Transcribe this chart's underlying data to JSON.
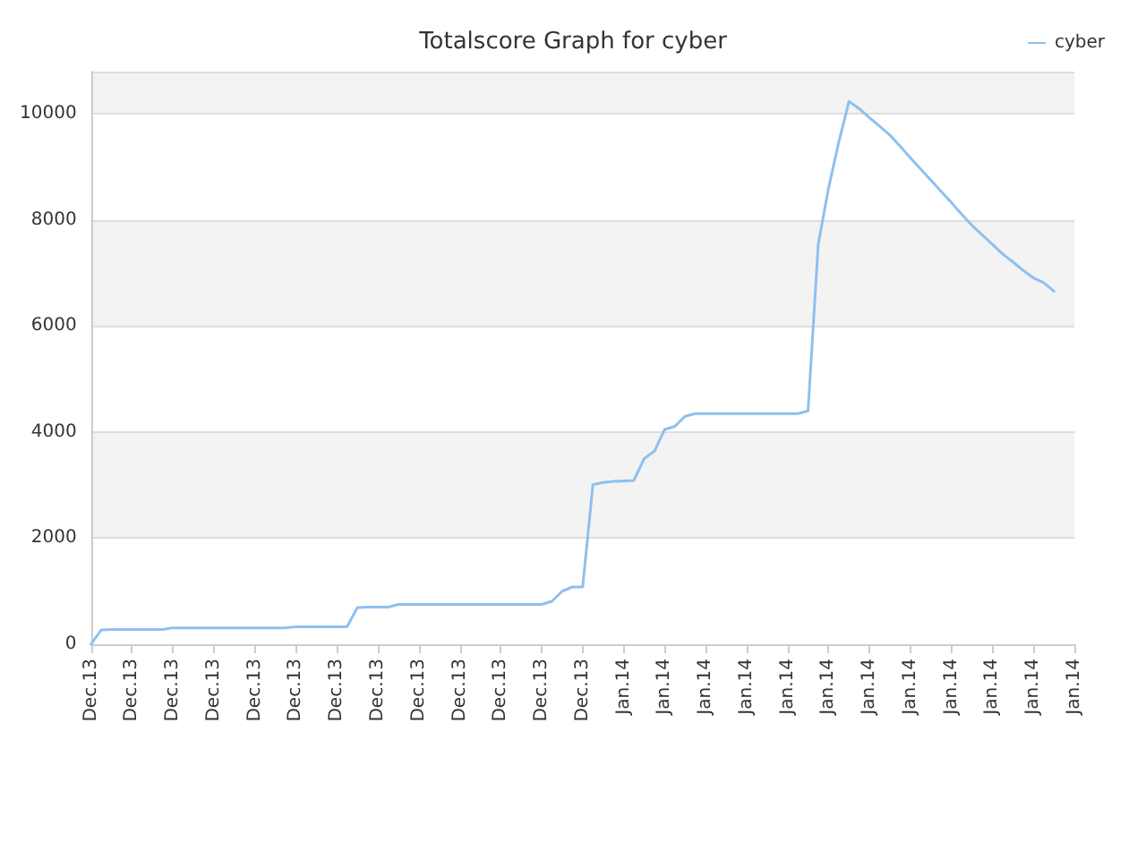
{
  "chart_data": {
    "type": "line",
    "title": "Totalscore Graph for cyber",
    "legend": "top right",
    "grid": "y",
    "marker": "none",
    "line_style": "solid",
    "ylim": [
      0,
      10800
    ],
    "yticks": [
      0,
      2000,
      4000,
      6000,
      8000,
      10000
    ],
    "categories": [
      "Dec.13",
      null,
      null,
      null,
      "Dec.13",
      null,
      null,
      null,
      "Dec.13",
      null,
      null,
      null,
      "Dec.13",
      null,
      null,
      null,
      "Dec.13",
      null,
      null,
      null,
      "Dec.13",
      null,
      null,
      null,
      "Dec.13",
      null,
      null,
      null,
      "Dec.13",
      null,
      null,
      null,
      "Dec.13",
      null,
      null,
      null,
      "Dec.13",
      null,
      null,
      null,
      "Dec.13",
      null,
      null,
      null,
      "Dec.13",
      null,
      null,
      null,
      "Dec.13",
      null,
      null,
      null,
      "Jan.14",
      null,
      null,
      null,
      "Jan.14",
      null,
      null,
      null,
      "Jan.14",
      null,
      null,
      null,
      "Jan.14",
      null,
      null,
      null,
      "Jan.14",
      null,
      null,
      null,
      "Jan.14",
      null,
      null,
      null,
      "Jan.14",
      null,
      null,
      null,
      "Jan.14",
      null,
      null,
      null,
      "Jan.14",
      null,
      null,
      null,
      "Jan.14",
      null,
      null,
      null,
      "Jan.14",
      null,
      null,
      null,
      "Jan.14"
    ],
    "series": [
      {
        "name": "cyber",
        "color": "#8ec0f0",
        "values": [
          0,
          270,
          280,
          280,
          280,
          280,
          280,
          280,
          310,
          310,
          310,
          310,
          310,
          310,
          310,
          310,
          310,
          310,
          310,
          310,
          330,
          330,
          330,
          330,
          330,
          330,
          690,
          700,
          700,
          700,
          750,
          750,
          750,
          750,
          750,
          750,
          750,
          750,
          750,
          750,
          750,
          750,
          750,
          750,
          750,
          810,
          1000,
          1080,
          1080,
          3010,
          3050,
          3070,
          3080,
          3090,
          3500,
          3640,
          4050,
          4110,
          4300,
          4350,
          4350,
          4350,
          4350,
          4350,
          4350,
          4350,
          4350,
          4350,
          4350,
          4350,
          4400,
          7550,
          8600,
          9470,
          10240,
          10100,
          9930,
          9770,
          9600,
          9390,
          9170,
          8960,
          8750,
          8540,
          8330,
          8110,
          7900,
          7720,
          7540,
          7360,
          7210,
          7050,
          6910,
          6820,
          6660,
          null,
          null
        ]
      }
    ]
  }
}
